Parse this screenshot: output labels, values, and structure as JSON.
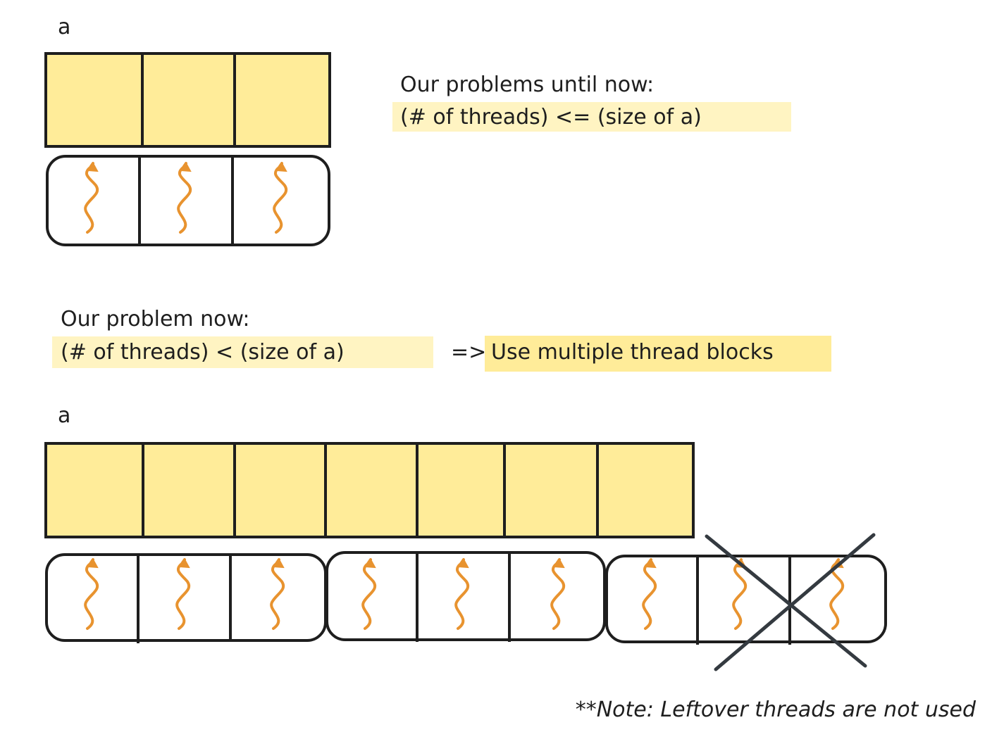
{
  "top": {
    "array_label": "a",
    "array_cells": 3,
    "threads": 3,
    "heading": "Our problems until now:",
    "condition": "(# of threads) <= (size of a)"
  },
  "middle": {
    "heading": "Our problem now:",
    "condition": "(# of threads) < (size of a)",
    "arrow": "=>",
    "solution": "Use multiple thread blocks"
  },
  "bottom": {
    "array_label": "a",
    "array_cells": 7,
    "blocks": 3,
    "threads_per_block": 3,
    "unused_threads": 2,
    "note": "**Note: Leftover threads are not used"
  },
  "colors": {
    "array_fill": "#ffec99",
    "highlight_soft": "#fff4c2",
    "thread": "#e8932f",
    "stroke": "#1e1e1e",
    "cross": "#343a40"
  }
}
